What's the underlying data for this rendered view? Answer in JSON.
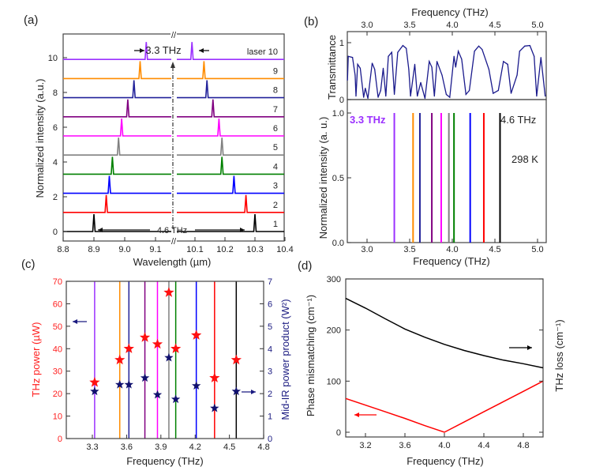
{
  "panel_labels": {
    "a": "(a)",
    "b": "(b)",
    "c": "(c)",
    "d": "(d)"
  },
  "chart_data": [
    {
      "id": "a",
      "type": "line",
      "xlabel": "Wavelength (µm)",
      "ylabel": "Normalized intensity (a.u.)",
      "x_ticks_left": [
        "8.8",
        "8.9",
        "9.0",
        "9.1"
      ],
      "x_ticks_right": [
        "10.1",
        "10.2",
        "10.3",
        "10.4"
      ],
      "y_ticks": [
        "0",
        "2",
        "4",
        "6",
        "8",
        "10"
      ],
      "axis_break": "//",
      "annotations": {
        "top_span": "3.3 THz",
        "bottom_span": "4.6 THz"
      },
      "series": [
        {
          "label": "1",
          "color": "#000000",
          "peak_left_um": 8.9,
          "peak_right_um": 10.3
        },
        {
          "label": "2",
          "color": "#ff0000",
          "peak_left_um": 8.94,
          "peak_right_um": 10.27
        },
        {
          "label": "3",
          "color": "#0000ff",
          "peak_left_um": 8.95,
          "peak_right_um": 10.23
        },
        {
          "label": "4",
          "color": "#008000",
          "peak_left_um": 8.96,
          "peak_right_um": 10.19
        },
        {
          "label": "5",
          "color": "#808080",
          "peak_left_um": 8.98,
          "peak_right_um": 10.19
        },
        {
          "label": "6",
          "color": "#ff00ff",
          "peak_left_um": 8.99,
          "peak_right_um": 10.18
        },
        {
          "label": "7",
          "color": "#800080",
          "peak_left_um": 9.01,
          "peak_right_um": 10.16
        },
        {
          "label": "8",
          "color": "#22229a",
          "peak_left_um": 9.03,
          "peak_right_um": 10.14
        },
        {
          "label": "9",
          "color": "#ff8c00",
          "peak_left_um": 9.05,
          "peak_right_um": 10.13
        },
        {
          "label": "laser 10",
          "color": "#9b30ff",
          "peak_left_um": 9.07,
          "peak_right_um": 10.09
        }
      ]
    },
    {
      "id": "b-top",
      "type": "line",
      "xlabel": "Frequency (THz)",
      "ylabel": "Transmittance",
      "x_ticks": [
        "3.0",
        "3.5",
        "4.0",
        "4.5",
        "5.0"
      ],
      "y_ticks": [
        "0",
        "1"
      ],
      "xlim": [
        2.77,
        5.1
      ],
      "ylim": [
        0,
        1.2
      ],
      "color": "#1a1a8c",
      "x": [
        2.77,
        2.78,
        2.83,
        2.86,
        2.87,
        2.89,
        2.92,
        2.96,
        2.98,
        3.01,
        3.06,
        3.09,
        3.13,
        3.16,
        3.19,
        3.22,
        3.25,
        3.29,
        3.32,
        3.36,
        3.42,
        3.46,
        3.49,
        3.51,
        3.56,
        3.59,
        3.63,
        3.68,
        3.73,
        3.76,
        3.79,
        3.82,
        3.88,
        3.93,
        3.97,
        4.02,
        4.04,
        4.07,
        4.11,
        4.16,
        4.2,
        4.26,
        4.31,
        4.35,
        4.43,
        4.48,
        4.54,
        4.6,
        4.65,
        4.69,
        4.76,
        4.79,
        4.85,
        4.91,
        4.96,
        4.99,
        5.04,
        5.09
      ],
      "y": [
        0.34,
        0.76,
        0.74,
        0.43,
        0.06,
        0.62,
        0.55,
        0.04,
        0.2,
        0.02,
        0.64,
        0.53,
        0.04,
        0.16,
        0.55,
        0.06,
        0.76,
        0.83,
        0.09,
        0.83,
        0.95,
        0.9,
        0.53,
        0.06,
        0.62,
        0.06,
        0.3,
        0.02,
        0.67,
        0.57,
        0.06,
        0.67,
        0.43,
        0.09,
        0.04,
        0.76,
        0.57,
        0.85,
        0.71,
        0.09,
        0.16,
        0.85,
        0.94,
        0.88,
        0.53,
        0.11,
        0.16,
        0.67,
        0.62,
        0.11,
        0.43,
        0.85,
        0.94,
        0.95,
        0.76,
        0.06,
        0.74,
        0.06
      ]
    },
    {
      "id": "b-bottom",
      "type": "bar",
      "xlabel": "Frequency (THz)",
      "ylabel": "Normalized intensity (a. u.)",
      "x_ticks": [
        "3.0",
        "3.5",
        "4.0",
        "4.5",
        "5.0"
      ],
      "y_ticks": [
        "0.0",
        "0.5",
        "1.0"
      ],
      "xlim": [
        2.77,
        5.1
      ],
      "ylim": [
        0,
        1.1
      ],
      "annotations": {
        "low": "3.3 THz",
        "high": "4.6 THz",
        "temperature": "298 K"
      },
      "lines": [
        {
          "freq": 3.32,
          "value": 1.0,
          "color": "#9b30ff"
        },
        {
          "freq": 3.54,
          "value": 1.0,
          "color": "#ff8c00"
        },
        {
          "freq": 3.62,
          "value": 1.0,
          "color": "#22229a"
        },
        {
          "freq": 3.76,
          "value": 1.0,
          "color": "#800080"
        },
        {
          "freq": 3.87,
          "value": 1.0,
          "color": "#ff00ff"
        },
        {
          "freq": 3.96,
          "value": 1.0,
          "color": "#808080"
        },
        {
          "freq": 4.02,
          "value": 1.0,
          "color": "#008000"
        },
        {
          "freq": 4.21,
          "value": 1.0,
          "color": "#0000ff"
        },
        {
          "freq": 4.37,
          "value": 1.0,
          "color": "#ff0000"
        },
        {
          "freq": 4.56,
          "value": 1.0,
          "color": "#000000"
        }
      ]
    },
    {
      "id": "c",
      "type": "scatter",
      "xlabel": "Frequency (THz)",
      "ylabel_left": "THz power (µW)",
      "ylabel_right": "Mid-IR power product (W²)",
      "x_ticks": [
        "3.3",
        "3.6",
        "3.9",
        "4.2",
        "4.5",
        "4.8"
      ],
      "y_ticks_left": [
        "0",
        "10",
        "20",
        "30",
        "40",
        "50",
        "60",
        "70"
      ],
      "y_ticks_right": [
        "0",
        "1",
        "2",
        "3",
        "4",
        "5",
        "6",
        "7"
      ],
      "xlim": [
        3.07,
        4.8
      ],
      "ylim_left": [
        0,
        70
      ],
      "ylim_right": [
        0,
        7
      ],
      "left_color": "#ff2020",
      "right_color": "#1a1a80",
      "freq": [
        3.32,
        3.54,
        3.62,
        3.76,
        3.87,
        3.97,
        4.03,
        4.21,
        4.37,
        4.56
      ],
      "line_colors": [
        "#9b30ff",
        "#ff8c00",
        "#22229a",
        "#800080",
        "#ff00ff",
        "#808080",
        "#008000",
        "#0000ff",
        "#ff0000",
        "#000000"
      ],
      "series": [
        {
          "axis": "left",
          "marker": "star",
          "color": "#ff1010",
          "values": [
            25,
            35,
            40,
            45,
            42,
            65,
            40,
            46,
            27,
            35
          ]
        },
        {
          "axis": "right",
          "marker": "star",
          "color": "#10106e",
          "values": [
            2.1,
            2.4,
            2.4,
            2.7,
            1.95,
            3.6,
            1.75,
            2.35,
            1.35,
            2.1
          ]
        }
      ]
    },
    {
      "id": "d",
      "type": "line",
      "xlabel": "Frequency (THz)",
      "ylabel_left": "Phase mismatching (cm⁻¹)",
      "ylabel_right": "THz loss (cm⁻¹)",
      "x_ticks": [
        "3.2",
        "3.6",
        "4.0",
        "4.4",
        "4.8"
      ],
      "y_ticks": [
        "0",
        "100",
        "200",
        "300"
      ],
      "xlim": [
        3.0,
        5.0
      ],
      "ylim": [
        -10,
        300
      ],
      "x": [
        3.0,
        3.2,
        3.4,
        3.6,
        3.8,
        4.0,
        4.2,
        4.4,
        4.6,
        4.8,
        5.0
      ],
      "series": [
        {
          "axis": "right",
          "color": "#000000",
          "values": [
            262,
            243,
            222,
            202,
            186,
            172,
            160,
            150,
            141,
            134,
            126
          ]
        },
        {
          "axis": "left",
          "color": "#ff0000",
          "values": [
            66,
            53,
            40,
            27,
            13,
            0,
            20,
            40,
            60,
            80,
            100
          ]
        }
      ]
    }
  ]
}
